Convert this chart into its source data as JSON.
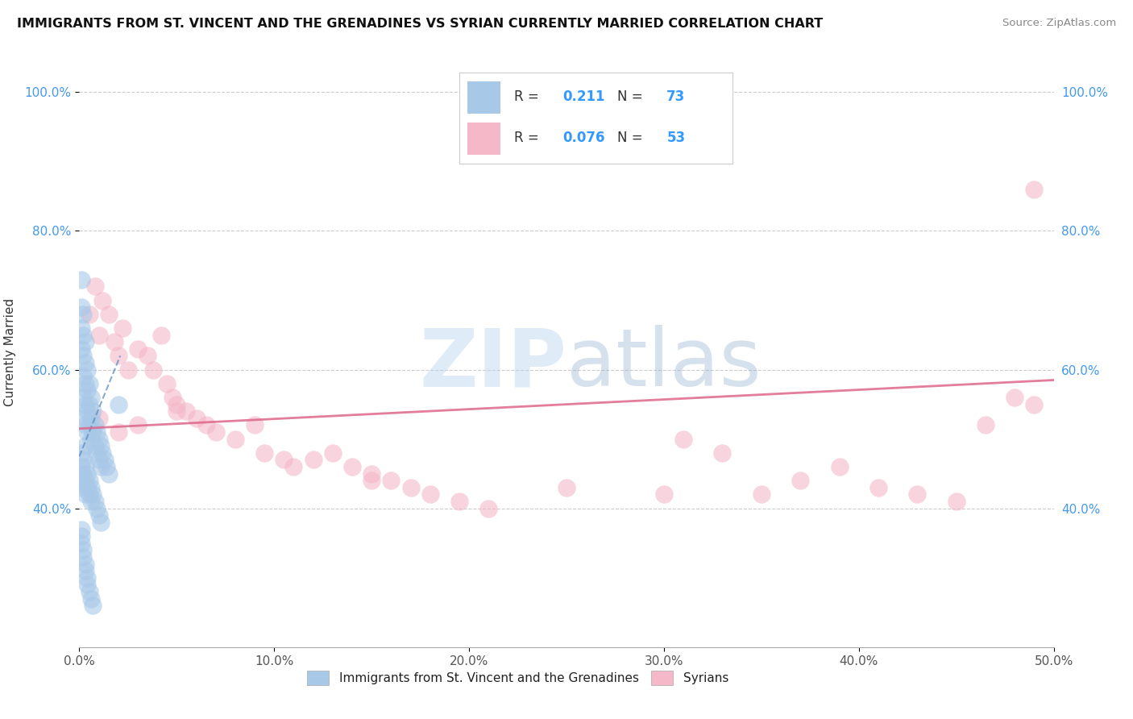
{
  "title": "IMMIGRANTS FROM ST. VINCENT AND THE GRENADINES VS SYRIAN CURRENTLY MARRIED CORRELATION CHART",
  "source_text": "Source: ZipAtlas.com",
  "ylabel": "Currently Married",
  "xlim": [
    0.0,
    0.5
  ],
  "ylim": [
    0.2,
    1.05
  ],
  "xtick_labels": [
    "0.0%",
    "10.0%",
    "20.0%",
    "30.0%",
    "40.0%",
    "50.0%"
  ],
  "xtick_vals": [
    0.0,
    0.1,
    0.2,
    0.3,
    0.4,
    0.5
  ],
  "ytick_labels": [
    "40.0%",
    "60.0%",
    "80.0%",
    "100.0%"
  ],
  "ytick_vals": [
    0.4,
    0.6,
    0.8,
    1.0
  ],
  "legend_R1": "0.211",
  "legend_N1": "73",
  "legend_R2": "0.076",
  "legend_N2": "53",
  "blue_color": "#a8c8e8",
  "pink_color": "#f4b8c8",
  "blue_line_color": "#5588bb",
  "pink_line_color": "#dd6688",
  "watermark_zip": "ZIP",
  "watermark_atlas": "atlas",
  "blue_scatter_x": [
    0.001,
    0.001,
    0.001,
    0.001,
    0.002,
    0.002,
    0.002,
    0.002,
    0.002,
    0.002,
    0.003,
    0.003,
    0.003,
    0.003,
    0.003,
    0.003,
    0.004,
    0.004,
    0.004,
    0.004,
    0.005,
    0.005,
    0.005,
    0.006,
    0.006,
    0.006,
    0.007,
    0.007,
    0.008,
    0.008,
    0.009,
    0.009,
    0.01,
    0.01,
    0.011,
    0.011,
    0.012,
    0.013,
    0.014,
    0.015,
    0.001,
    0.001,
    0.001,
    0.002,
    0.002,
    0.002,
    0.003,
    0.003,
    0.003,
    0.004,
    0.004,
    0.005,
    0.005,
    0.006,
    0.006,
    0.007,
    0.008,
    0.009,
    0.01,
    0.011,
    0.001,
    0.001,
    0.001,
    0.002,
    0.002,
    0.003,
    0.003,
    0.004,
    0.004,
    0.005,
    0.006,
    0.007,
    0.02
  ],
  "blue_scatter_y": [
    0.73,
    0.69,
    0.66,
    0.63,
    0.68,
    0.65,
    0.62,
    0.59,
    0.56,
    0.53,
    0.64,
    0.61,
    0.58,
    0.55,
    0.52,
    0.49,
    0.6,
    0.57,
    0.54,
    0.51,
    0.58,
    0.55,
    0.52,
    0.56,
    0.53,
    0.5,
    0.54,
    0.51,
    0.52,
    0.49,
    0.51,
    0.48,
    0.5,
    0.47,
    0.49,
    0.46,
    0.48,
    0.47,
    0.46,
    0.45,
    0.48,
    0.46,
    0.44,
    0.47,
    0.45,
    0.43,
    0.46,
    0.44,
    0.42,
    0.45,
    0.43,
    0.44,
    0.42,
    0.43,
    0.41,
    0.42,
    0.41,
    0.4,
    0.39,
    0.38,
    0.37,
    0.36,
    0.35,
    0.34,
    0.33,
    0.32,
    0.31,
    0.3,
    0.29,
    0.28,
    0.27,
    0.26,
    0.55
  ],
  "pink_scatter_x": [
    0.005,
    0.008,
    0.01,
    0.012,
    0.015,
    0.018,
    0.02,
    0.022,
    0.025,
    0.03,
    0.035,
    0.038,
    0.042,
    0.045,
    0.048,
    0.05,
    0.055,
    0.06,
    0.065,
    0.07,
    0.08,
    0.09,
    0.095,
    0.105,
    0.11,
    0.12,
    0.13,
    0.14,
    0.15,
    0.16,
    0.17,
    0.18,
    0.195,
    0.21,
    0.25,
    0.3,
    0.31,
    0.33,
    0.35,
    0.37,
    0.39,
    0.41,
    0.43,
    0.45,
    0.465,
    0.48,
    0.49,
    0.01,
    0.02,
    0.03,
    0.05,
    0.15,
    0.49
  ],
  "pink_scatter_y": [
    0.68,
    0.72,
    0.65,
    0.7,
    0.68,
    0.64,
    0.62,
    0.66,
    0.6,
    0.63,
    0.62,
    0.6,
    0.65,
    0.58,
    0.56,
    0.55,
    0.54,
    0.53,
    0.52,
    0.51,
    0.5,
    0.52,
    0.48,
    0.47,
    0.46,
    0.47,
    0.48,
    0.46,
    0.45,
    0.44,
    0.43,
    0.42,
    0.41,
    0.4,
    0.43,
    0.42,
    0.5,
    0.48,
    0.42,
    0.44,
    0.46,
    0.43,
    0.42,
    0.41,
    0.52,
    0.56,
    0.55,
    0.53,
    0.51,
    0.52,
    0.54,
    0.44,
    0.86
  ],
  "blue_trendline_x": [
    0.0,
    0.021
  ],
  "blue_trendline_y": [
    0.475,
    0.62
  ],
  "pink_trendline_x": [
    0.0,
    0.5
  ],
  "pink_trendline_y": [
    0.515,
    0.585
  ]
}
